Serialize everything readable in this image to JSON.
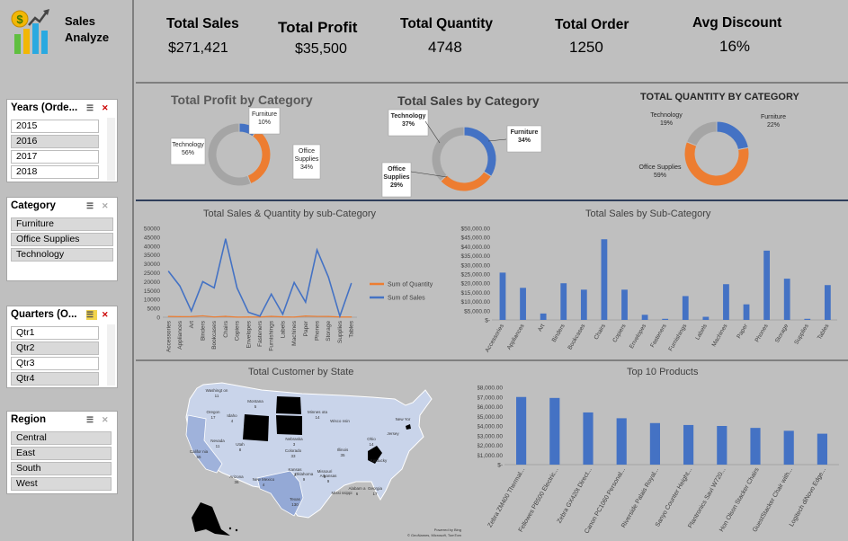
{
  "app": {
    "title_line1": "Sales",
    "title_line2": "Analyze"
  },
  "slicers": {
    "years": {
      "title": "Years (Orde...",
      "items": [
        "2015",
        "2016",
        "2017",
        "2018"
      ]
    },
    "category": {
      "title": "Category",
      "items": [
        "Furniture",
        "Office Supplies",
        "Technology"
      ]
    },
    "quarters": {
      "title": "Quarters (O...",
      "items": [
        "Qtr1",
        "Qtr2",
        "Qtr3",
        "Qtr4"
      ]
    },
    "region": {
      "title": "Region",
      "items": [
        "Central",
        "East",
        "South",
        "West"
      ]
    }
  },
  "kpis": [
    {
      "label": "Total Sales",
      "value": "$271,421"
    },
    {
      "label": "Total Profit",
      "value": "$35,500"
    },
    {
      "label": "Total Quantity",
      "value": "4748"
    },
    {
      "label": "Total Order",
      "value": "1250"
    },
    {
      "label": "Avg Discount",
      "value": "16%"
    }
  ],
  "colors": {
    "blue": "#4472c4",
    "orange": "#ed7d31",
    "grey": "#a5a5a5",
    "bg": "#bfbfbf"
  },
  "chart_data": [
    {
      "type": "pie",
      "title": "Total Profit by Category",
      "labels": [
        "Furniture",
        "Office Supplies",
        "Technology"
      ],
      "values": [
        10,
        34,
        56
      ],
      "value_labels": [
        "10%",
        "34%",
        "56%"
      ],
      "colors": [
        "#4472c4",
        "#ed7d31",
        "#a5a5a5"
      ]
    },
    {
      "type": "pie",
      "title": "Total Sales by Category",
      "labels": [
        "Furniture",
        "Office Supplies",
        "Technology"
      ],
      "values": [
        34,
        29,
        37
      ],
      "value_labels": [
        "34%",
        "29%",
        "37%"
      ],
      "colors": [
        "#4472c4",
        "#ed7d31",
        "#a5a5a5"
      ]
    },
    {
      "type": "pie",
      "title": "TOTAL QUANTITY BY CATEGORY",
      "labels": [
        "Furniture",
        "Office Supplies",
        "Technology"
      ],
      "values": [
        22,
        59,
        19
      ],
      "value_labels": [
        "22%",
        "59%",
        "19%"
      ],
      "colors": [
        "#4472c4",
        "#ed7d31",
        "#a5a5a5"
      ]
    },
    {
      "type": "line",
      "title": "Total Sales & Quantity by sub-Category",
      "categories": [
        "Accessories",
        "Appliances",
        "Art",
        "Binders",
        "Bookcases",
        "Chairs",
        "Copiers",
        "Envelopes",
        "Fasteners",
        "Furnishings",
        "Labels",
        "Machines",
        "Paper",
        "Phones",
        "Storage",
        "Supplies",
        "Tables"
      ],
      "series": [
        {
          "name": "Sum of Quantity",
          "values": [
            450,
            310,
            390,
            780,
            160,
            490,
            80,
            120,
            130,
            520,
            180,
            90,
            680,
            470,
            440,
            120,
            140
          ]
        },
        {
          "name": "Sum of Sales",
          "values": [
            25800,
            17500,
            3500,
            20000,
            16500,
            44000,
            16500,
            2800,
            600,
            13000,
            1700,
            19500,
            8500,
            37800,
            22500,
            600,
            19000
          ]
        }
      ],
      "ylim": [
        0,
        50000
      ],
      "yticks": [
        "0",
        "5000",
        "10000",
        "15000",
        "20000",
        "25000",
        "30000",
        "35000",
        "40000",
        "45000",
        "50000"
      ]
    },
    {
      "type": "bar",
      "title": "Total Sales by Sub-Category",
      "categories": [
        "Accessories",
        "Appliances",
        "Art",
        "Binders",
        "Bookcases",
        "Chairs",
        "Copiers",
        "Envelopes",
        "Fasteners",
        "Furnishings",
        "Labels",
        "Machines",
        "Paper",
        "Phones",
        "Storage",
        "Supplies",
        "Tables"
      ],
      "values": [
        25800,
        17500,
        3500,
        20000,
        16500,
        44000,
        16500,
        2800,
        600,
        13000,
        1700,
        19500,
        8500,
        37800,
        22500,
        600,
        19000
      ],
      "ylim": [
        0,
        50000
      ],
      "yticks": [
        "$-",
        "$5,000.00",
        "$10,000.00",
        "$15,000.00",
        "$20,000.00",
        "$25,000.00",
        "$30,000.00",
        "$35,000.00",
        "$40,000.00",
        "$45,000.00",
        "$50,000.00"
      ]
    },
    {
      "type": "bar",
      "title": "Top 10 Products",
      "categories": [
        "Zebra ZM400 Thermal...",
        "Fellowes PB500 Electric...",
        "Zebra GX420t Direct...",
        "Canon PC1060 Personal...",
        "Riverside Palais Royal...",
        "Sanyo Counter Height...",
        "Plantronics Savi W720...",
        "Hon Olson Stacker Chairs",
        "GuestStacker Chair with...",
        "Logitech diNovo Edge..."
      ],
      "values": [
        7000,
        6900,
        5400,
        4800,
        4300,
        4100,
        4000,
        3800,
        3500,
        3200
      ],
      "ylim": [
        0,
        8000
      ],
      "yticks": [
        "$-",
        "$1,000.00",
        "$2,000.00",
        "$3,000.00",
        "$4,000.00",
        "$5,000.00",
        "$6,000.00",
        "$7,000.00",
        "$8,000.00"
      ]
    }
  ],
  "map": {
    "title": "Total Customer by State",
    "attribution": "Powered by Bing",
    "copyright": "© GeoNames, Microsoft, TomTom",
    "labels": [
      {
        "name": "Washingt on",
        "count": "11"
      },
      {
        "name": "Montana",
        "count": "5"
      },
      {
        "name": "Minnes ota",
        "count": "14"
      },
      {
        "name": "Oregon",
        "count": "17"
      },
      {
        "name": "Idaho",
        "count": "4"
      },
      {
        "name": "Wisco nsin",
        "count": ""
      },
      {
        "name": "New Yor",
        "count": ""
      },
      {
        "name": "Nevada",
        "count": "11"
      },
      {
        "name": "Nebraska",
        "count": "3"
      },
      {
        "name": "Ohio",
        "count": "14"
      },
      {
        "name": "Califor nia",
        "count": "55"
      },
      {
        "name": "Utah",
        "count": "8"
      },
      {
        "name": "Colorado",
        "count": "33"
      },
      {
        "name": "Illinois",
        "count": "35"
      },
      {
        "name": "Kansas",
        "count": "2"
      },
      {
        "name": "Missouri",
        "count": "8"
      },
      {
        "name": "Arizona",
        "count": "36"
      },
      {
        "name": "New Mexico",
        "count": "4"
      },
      {
        "name": "Oklahoma",
        "count": "9"
      },
      {
        "name": "Arkansas",
        "count": "9"
      },
      {
        "name": "Alabam a",
        "count": "6"
      },
      {
        "name": "Georgia",
        "count": "17"
      },
      {
        "name": "Missi ssippi",
        "count": ""
      },
      {
        "name": "Texas",
        "count": "130"
      },
      {
        "name": "Jersey",
        "count": ""
      },
      {
        "name": "Kentucky",
        "count": ""
      }
    ]
  }
}
